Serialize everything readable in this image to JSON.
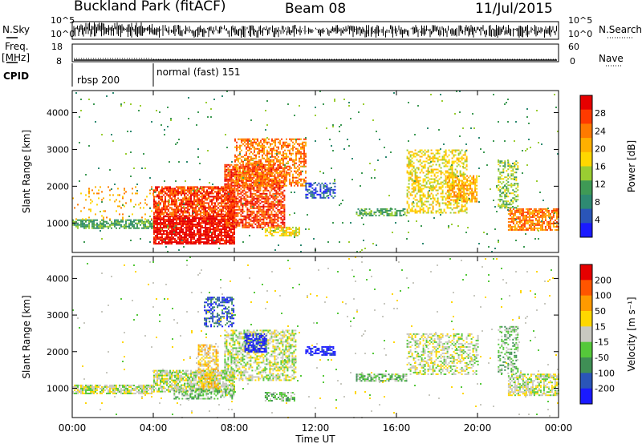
{
  "header": {
    "station": "Buckland Park (fitACF)",
    "beam": "Beam 08",
    "date": "11/Jul/2015"
  },
  "strip_labels": {
    "nsky": "N.Sky",
    "freq": "Freq.",
    "freq_unit": "[MHz]",
    "cpid": "CPID",
    "nsearch": "N.Search",
    "nave": "Nave"
  },
  "strip_ticks": {
    "noise_left": [
      "10^5",
      "10^0"
    ],
    "noise_right": [
      "10^5",
      "10^0"
    ],
    "freq_left": [
      "18",
      "8"
    ],
    "nave_right": [
      "60",
      "0"
    ]
  },
  "cpid_segments": [
    {
      "label": "rbsp 200",
      "start_hour": 0,
      "end_hour": 4
    },
    {
      "label": "normal (fast) 151",
      "start_hour": 4,
      "end_hour": 24
    }
  ],
  "chart_data": [
    {
      "type": "heatmap",
      "name": "power-panel",
      "ylabel": "Slant Range [km]",
      "xlabel": "Time UT",
      "xlim": [
        0,
        24
      ],
      "ylim": [
        200,
        4600
      ],
      "x_tick_labels": [
        "00:00",
        "04:00",
        "08:00",
        "12:00",
        "16:00",
        "20:00",
        "00:00"
      ],
      "y_tick_labels": [
        "1000",
        "2000",
        "3000",
        "4000"
      ],
      "colorbar": {
        "label": "Power [dB]",
        "ticks": [
          "4",
          "8",
          "12",
          "16",
          "20",
          "24",
          "28"
        ],
        "colors": [
          "#1a1aff",
          "#2a55b8",
          "#2e8a72",
          "#3f9a55",
          "#9acd32",
          "#ffd700",
          "#ffb000",
          "#ff7a00",
          "#ff3a00",
          "#e60000"
        ]
      },
      "regions": [
        {
          "t0": 0.0,
          "t1": 4.0,
          "r0": 850,
          "r1": 1100,
          "level": 3,
          "density": 0.7
        },
        {
          "t0": 0.0,
          "t1": 4.0,
          "r0": 1100,
          "r1": 2000,
          "level": 6,
          "density": 0.08
        },
        {
          "t0": 4.0,
          "t1": 8.0,
          "r0": 450,
          "r1": 1200,
          "level": 9,
          "density": 0.85
        },
        {
          "t0": 4.0,
          "t1": 8.0,
          "r0": 1200,
          "r1": 2000,
          "level": 8,
          "density": 0.75
        },
        {
          "t0": 7.5,
          "t1": 10.5,
          "r0": 900,
          "r1": 2600,
          "level": 8,
          "density": 0.7
        },
        {
          "t0": 8.0,
          "t1": 11.5,
          "r0": 2000,
          "r1": 3300,
          "level": 7,
          "density": 0.55
        },
        {
          "t0": 9.5,
          "t1": 11.2,
          "r0": 650,
          "r1": 900,
          "level": 5,
          "density": 0.6
        },
        {
          "t0": 11.5,
          "t1": 13.0,
          "r0": 1700,
          "r1": 2100,
          "level": 1,
          "density": 0.5
        },
        {
          "t0": 14.0,
          "t1": 16.5,
          "r0": 1200,
          "r1": 1400,
          "level": 3,
          "density": 0.6
        },
        {
          "t0": 16.5,
          "t1": 19.5,
          "r0": 1300,
          "r1": 3000,
          "level": 5,
          "density": 0.45
        },
        {
          "t0": 18.5,
          "t1": 20.0,
          "r0": 1600,
          "r1": 2300,
          "level": 6,
          "density": 0.6
        },
        {
          "t0": 21.5,
          "t1": 24.0,
          "r0": 800,
          "r1": 1400,
          "level": 7,
          "density": 0.75
        },
        {
          "t0": 21.0,
          "t1": 22.0,
          "r0": 1400,
          "r1": 2700,
          "level": 4,
          "density": 0.45
        },
        {
          "t0": 0.0,
          "t1": 24.0,
          "r0": 200,
          "r1": 4600,
          "level": 3,
          "density": 0.012
        }
      ]
    },
    {
      "type": "heatmap",
      "name": "velocity-panel",
      "ylabel": "Slant Range [km]",
      "xlabel": "Time UT",
      "xlim": [
        0,
        24
      ],
      "ylim": [
        200,
        4600
      ],
      "x_tick_labels": [
        "00:00",
        "04:00",
        "08:00",
        "12:00",
        "16:00",
        "20:00",
        "00:00"
      ],
      "y_tick_labels": [
        "1000",
        "2000",
        "3000",
        "4000"
      ],
      "colorbar": {
        "label": "Velocity [m s⁻¹]",
        "ticks": [
          "200",
          "100",
          "50",
          "15",
          "-15",
          "-50",
          "-100",
          "-200"
        ],
        "colors": [
          "#1a1aff",
          "#2a55b8",
          "#3f8f55",
          "#55c83a",
          "#c8c8c0",
          "#ffd700",
          "#ff9a00",
          "#ff5500",
          "#e60000"
        ]
      },
      "regions": [
        {
          "t0": 0.0,
          "t1": 4.0,
          "r0": 850,
          "r1": 1100,
          "level": 4,
          "density": 0.75
        },
        {
          "t0": 4.0,
          "t1": 8.0,
          "r0": 900,
          "r1": 1500,
          "level": 4,
          "density": 0.75
        },
        {
          "t0": 6.2,
          "t1": 7.2,
          "r0": 1000,
          "r1": 2200,
          "level": 5,
          "density": 0.6
        },
        {
          "t0": 5.0,
          "t1": 8.0,
          "r0": 700,
          "r1": 1000,
          "level": 3,
          "density": 0.55
        },
        {
          "t0": 7.5,
          "t1": 11.0,
          "r0": 1200,
          "r1": 2600,
          "level": 4,
          "density": 0.55
        },
        {
          "t0": 8.5,
          "t1": 9.6,
          "r0": 2000,
          "r1": 2500,
          "level": 0,
          "density": 0.7
        },
        {
          "t0": 6.5,
          "t1": 8.0,
          "r0": 2700,
          "r1": 3500,
          "level": 1,
          "density": 0.5
        },
        {
          "t0": 9.5,
          "t1": 11.0,
          "r0": 650,
          "r1": 900,
          "level": 3,
          "density": 0.6
        },
        {
          "t0": 11.5,
          "t1": 13.0,
          "r0": 1900,
          "r1": 2150,
          "level": 0,
          "density": 0.6
        },
        {
          "t0": 14.0,
          "t1": 16.5,
          "r0": 1200,
          "r1": 1400,
          "level": 3,
          "density": 0.6
        },
        {
          "t0": 16.5,
          "t1": 20.0,
          "r0": 1400,
          "r1": 2500,
          "level": 4,
          "density": 0.45
        },
        {
          "t0": 21.5,
          "t1": 24.0,
          "r0": 800,
          "r1": 1400,
          "level": 4,
          "density": 0.65
        },
        {
          "t0": 21.0,
          "t1": 22.0,
          "r0": 1400,
          "r1": 2700,
          "level": 3,
          "density": 0.45
        },
        {
          "t0": 0.0,
          "t1": 24.0,
          "r0": 200,
          "r1": 4600,
          "level": 4,
          "density": 0.012
        }
      ]
    }
  ]
}
